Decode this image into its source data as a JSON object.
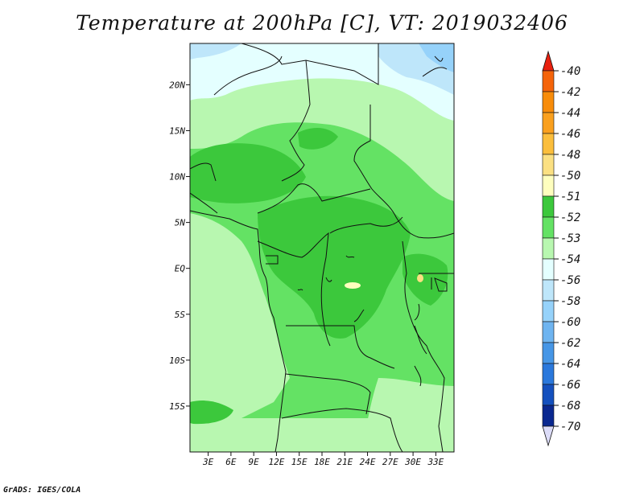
{
  "title": "Temperature at 200hPa [C], VT: 2019032406",
  "credit": "GrADS: IGES/COLA",
  "map": {
    "lat_ticks": [
      {
        "value": 20,
        "label": "20N"
      },
      {
        "value": 15,
        "label": "15N"
      },
      {
        "value": 10,
        "label": "10N"
      },
      {
        "value": 5,
        "label": "5N"
      },
      {
        "value": 0,
        "label": "EQ"
      },
      {
        "value": -5,
        "label": "5S"
      },
      {
        "value": -10,
        "label": "10S"
      },
      {
        "value": -15,
        "label": "15S"
      }
    ],
    "lon_ticks": [
      {
        "value": 3,
        "label": "3E"
      },
      {
        "value": 6,
        "label": "6E"
      },
      {
        "value": 9,
        "label": "9E"
      },
      {
        "value": 12,
        "label": "12E"
      },
      {
        "value": 15,
        "label": "15E"
      },
      {
        "value": 18,
        "label": "18E"
      },
      {
        "value": 21,
        "label": "21E"
      },
      {
        "value": 24,
        "label": "24E"
      },
      {
        "value": 27,
        "label": "27E"
      },
      {
        "value": 30,
        "label": "30E"
      },
      {
        "value": 33,
        "label": "33E"
      }
    ]
  },
  "colorbar": {
    "top_arrow_color": "#e8200e",
    "bottom_arrow_color": "#dcdcf8",
    "levels": [
      {
        "label": "-40",
        "color": "#f03210"
      },
      {
        "label": "-42",
        "color": "#f5640a"
      },
      {
        "label": "-44",
        "color": "#f88c0a"
      },
      {
        "label": "-46",
        "color": "#faa01e"
      },
      {
        "label": "-48",
        "color": "#fbbe3c"
      },
      {
        "label": "-50",
        "color": "#fbe082"
      },
      {
        "label": "-51",
        "color": "#fefebe"
      },
      {
        "label": "-52",
        "color": "#3cc83c"
      },
      {
        "label": "-53",
        "color": "#64e264"
      },
      {
        "label": "-54",
        "color": "#b8f7b0"
      },
      {
        "label": "-56",
        "color": "#e4ffff"
      },
      {
        "label": "-58",
        "color": "#bee6fa"
      },
      {
        "label": "-60",
        "color": "#96d2fa"
      },
      {
        "label": "-62",
        "color": "#6eb4f0"
      },
      {
        "label": "-64",
        "color": "#4696e6"
      },
      {
        "label": "-66",
        "color": "#2a78dc"
      },
      {
        "label": "-68",
        "color": "#1450be"
      },
      {
        "label": "-70",
        "color": "#0a2890"
      }
    ]
  }
}
